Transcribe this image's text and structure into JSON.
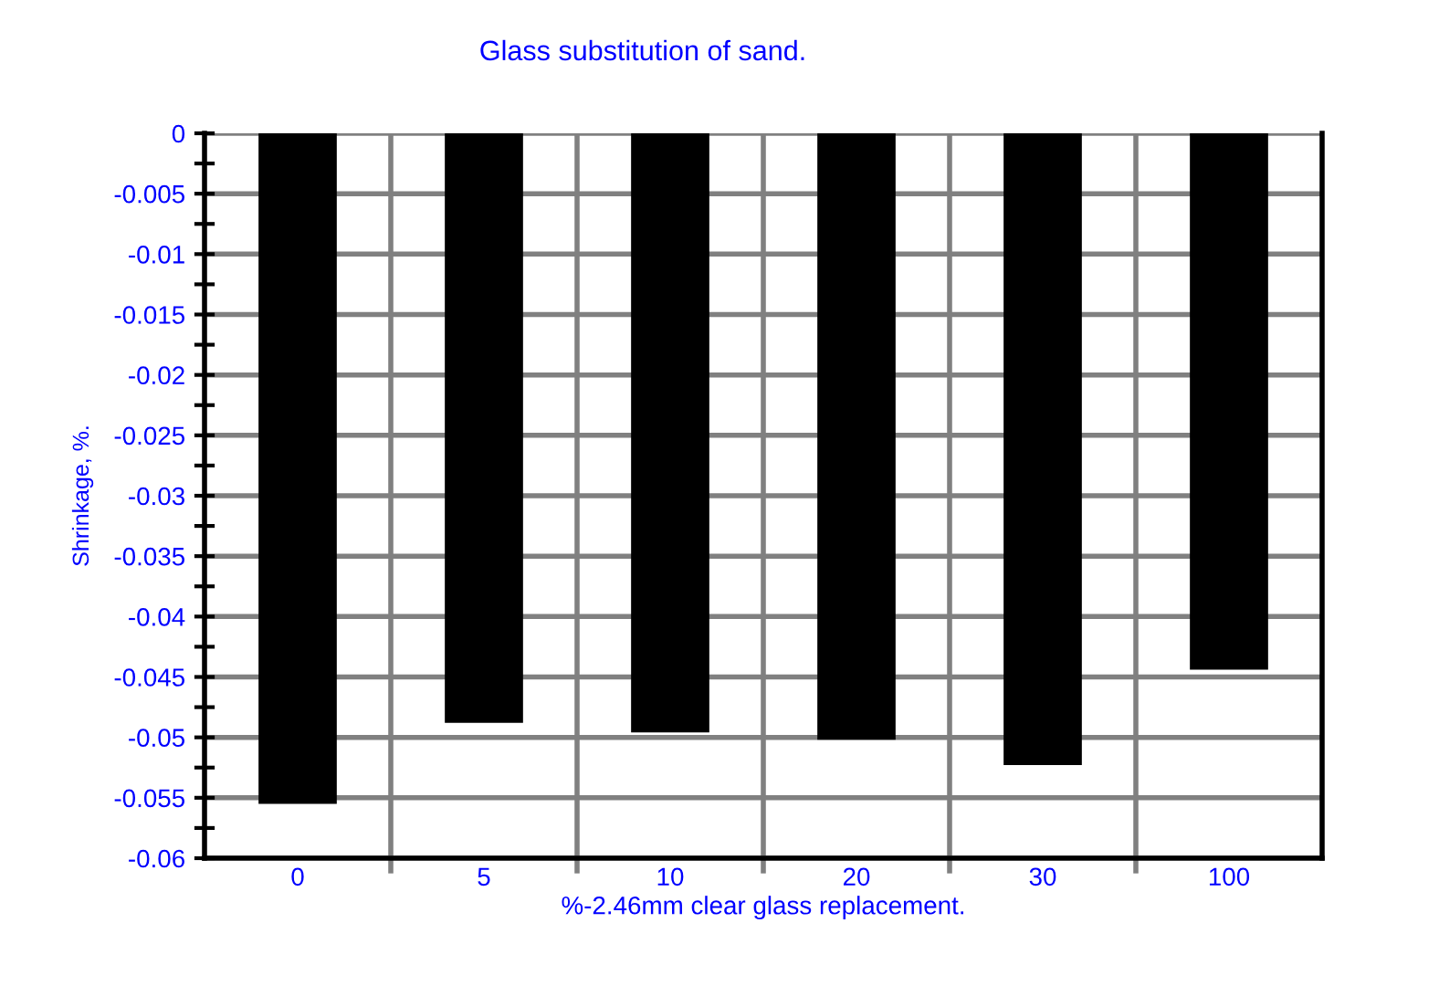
{
  "chart_data": {
    "type": "bar",
    "title": "Glass substitution of sand.",
    "xlabel": "%-2.46mm clear glass replacement.",
    "ylabel": "Shrinkage, %.",
    "categories": [
      "0",
      "5",
      "10",
      "20",
      "30",
      "100"
    ],
    "values": [
      -0.0555,
      -0.0488,
      -0.0496,
      -0.0502,
      -0.0523,
      -0.0444
    ],
    "color": "#000000",
    "ylim": [
      -0.06,
      0
    ],
    "yticks": [
      0,
      -0.005,
      -0.01,
      -0.015,
      -0.02,
      -0.025,
      -0.03,
      -0.035,
      -0.04,
      -0.045,
      -0.05,
      -0.055,
      -0.06
    ],
    "grid": true,
    "legend": false
  }
}
